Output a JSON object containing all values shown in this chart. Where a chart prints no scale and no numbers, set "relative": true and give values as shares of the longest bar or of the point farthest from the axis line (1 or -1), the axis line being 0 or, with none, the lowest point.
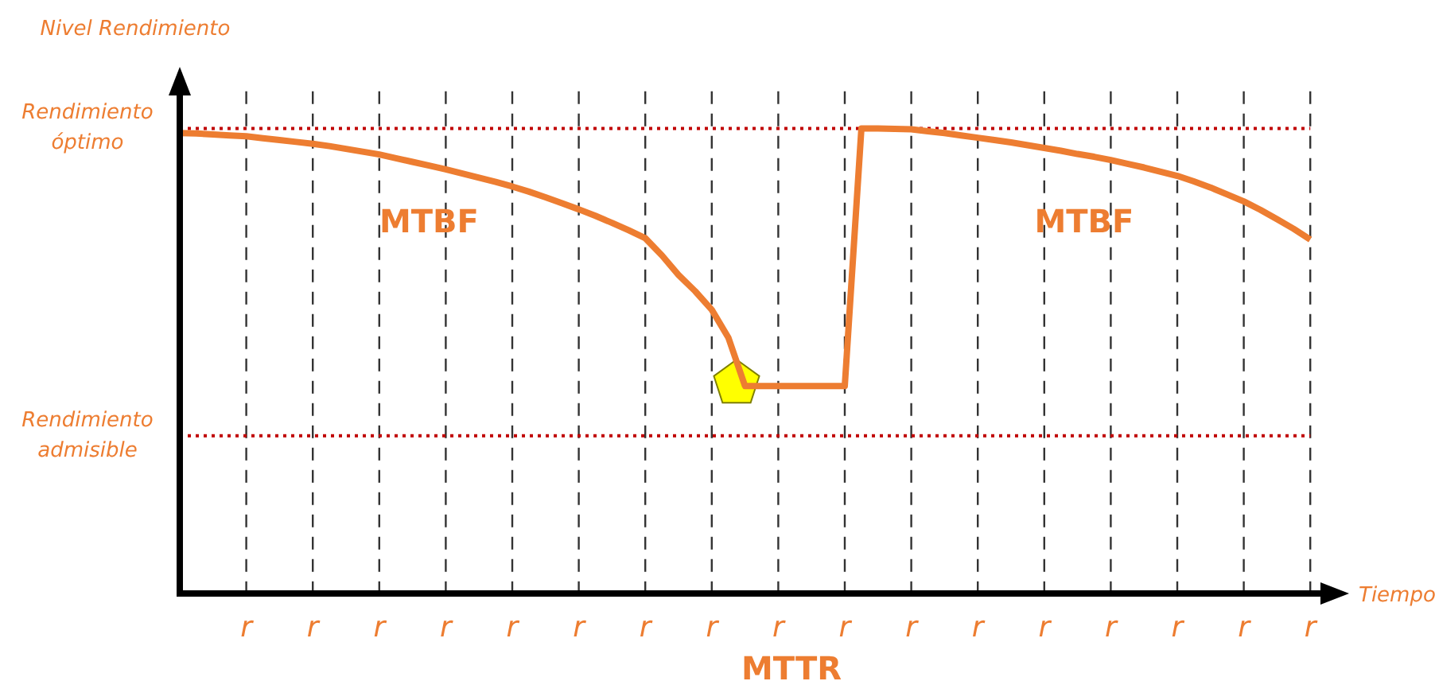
{
  "chart_data": {
    "type": "line",
    "relative": true,
    "xlabel": "Tiempo",
    "ylabel": "Nivel Rendimiento",
    "categories": [
      null,
      null,
      null,
      null,
      "r",
      null,
      null,
      null,
      "r",
      null,
      null,
      null,
      "r",
      null,
      null,
      null,
      "r",
      null,
      null,
      null,
      "r",
      null,
      null,
      null,
      "r",
      null,
      null,
      null,
      "r",
      null,
      null,
      null,
      "r",
      null,
      null,
      null,
      "r",
      null,
      null,
      null,
      "r",
      null,
      null,
      null,
      "r",
      null,
      null,
      null,
      "r",
      null,
      null,
      null,
      "r",
      null,
      null,
      null,
      "r",
      null,
      null,
      null,
      "r",
      null,
      null,
      null,
      "r",
      null,
      null,
      null,
      "r"
    ],
    "series": [
      {
        "color": "#ed7d31",
        "values": [
          0.99,
          0.989,
          0.987,
          0.985,
          0.983,
          0.979,
          0.975,
          0.971,
          0.967,
          0.962,
          0.956,
          0.95,
          0.944,
          0.936,
          0.928,
          0.92,
          0.912,
          0.903,
          0.894,
          0.885,
          0.875,
          0.864,
          0.852,
          0.839,
          0.826,
          0.812,
          0.797,
          0.781,
          0.764,
          0.727,
          0.685,
          0.65,
          0.61,
          0.55,
          0.446,
          0.446,
          0.446,
          0.446,
          0.446,
          0.446,
          0.446,
          1,
          1,
          0.999,
          0.998,
          0.994,
          0.99,
          0.985,
          0.98,
          0.975,
          0.97,
          0.964,
          0.958,
          0.952,
          0.945,
          0.939,
          0.932,
          0.924,
          0.916,
          0.907,
          0.898,
          0.886,
          0.873,
          0.858,
          0.843,
          0.825,
          0.805,
          0.784,
          0.761
        ]
      }
    ],
    "grid": "x",
    "marker": "none",
    "line_style": "solid",
    "ref_lines": [
      {
        "axis": "y",
        "value": 1,
        "label": "Rendimiento óptimo",
        "color": "#c00000",
        "line_style": "dotted"
      },
      {
        "axis": "y",
        "value": 0.339,
        "label": "Rendimiento admisible",
        "color": "#c00000",
        "line_style": "dotted"
      }
    ],
    "annotations": [
      "MTBF",
      "MTBF",
      "MTTR"
    ]
  }
}
